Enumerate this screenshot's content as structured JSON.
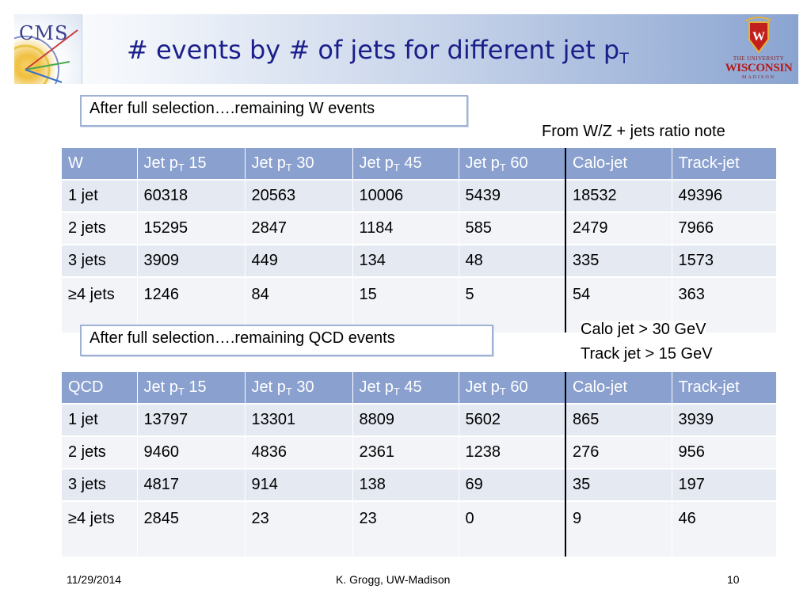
{
  "slide": {
    "title_main": "# events by # of jets for different jet p",
    "title_sub": "T",
    "cms_logo_text": "CMS",
    "uw_logo": {
      "line1": "THE UNIVERSITY",
      "line2": "WISCONSIN",
      "line3": "MADISON"
    }
  },
  "w_section": {
    "label": "After full selection….remaining W events",
    "note": "From W/Z + jets ratio note",
    "headers": [
      "W",
      "Jet p",
      "Jet p",
      "Jet p",
      "Jet p",
      "Calo-jet",
      "Track-jet"
    ],
    "header_values": [
      "",
      "15",
      "30",
      "45",
      "60",
      "",
      ""
    ],
    "header_sub": "T",
    "rows": [
      [
        "1 jet",
        "60318",
        "20563",
        "10006",
        "5439",
        "18532",
        "49396"
      ],
      [
        "2 jets",
        "15295",
        "2847",
        "1184",
        "585",
        "2479",
        "7966"
      ],
      [
        "3 jets",
        "3909",
        "449",
        "134",
        "48",
        "335",
        "1573"
      ],
      [
        "≥4 jets",
        "1246",
        "84",
        "15",
        "5",
        "54",
        "363"
      ]
    ]
  },
  "cut_note": {
    "calo": "Calo jet  > 30 GeV",
    "track": "Track jet > 15 GeV"
  },
  "qcd_section": {
    "label": "After full selection….remaining QCD events",
    "headers": [
      "QCD",
      "Jet p",
      "Jet p",
      "Jet p",
      "Jet p",
      "Calo-jet",
      "Track-jet"
    ],
    "header_values": [
      "",
      "15",
      "30",
      "45",
      "60",
      "",
      ""
    ],
    "header_sub": "T",
    "rows": [
      [
        "1 jet",
        "13797",
        "13301",
        "8809",
        "5602",
        "865",
        "3939"
      ],
      [
        "2 jets",
        "9460",
        "4836",
        "2361",
        "1238",
        "276",
        "956"
      ],
      [
        "3 jets",
        "4817",
        "914",
        "138",
        "69",
        "35",
        "197"
      ],
      [
        "≥4 jets",
        "2845",
        "23",
        "23",
        "0",
        "9",
        "46"
      ]
    ]
  },
  "footer": {
    "date": "11/29/2014",
    "author": "K. Grogg, UW-Madison",
    "page": "10"
  }
}
